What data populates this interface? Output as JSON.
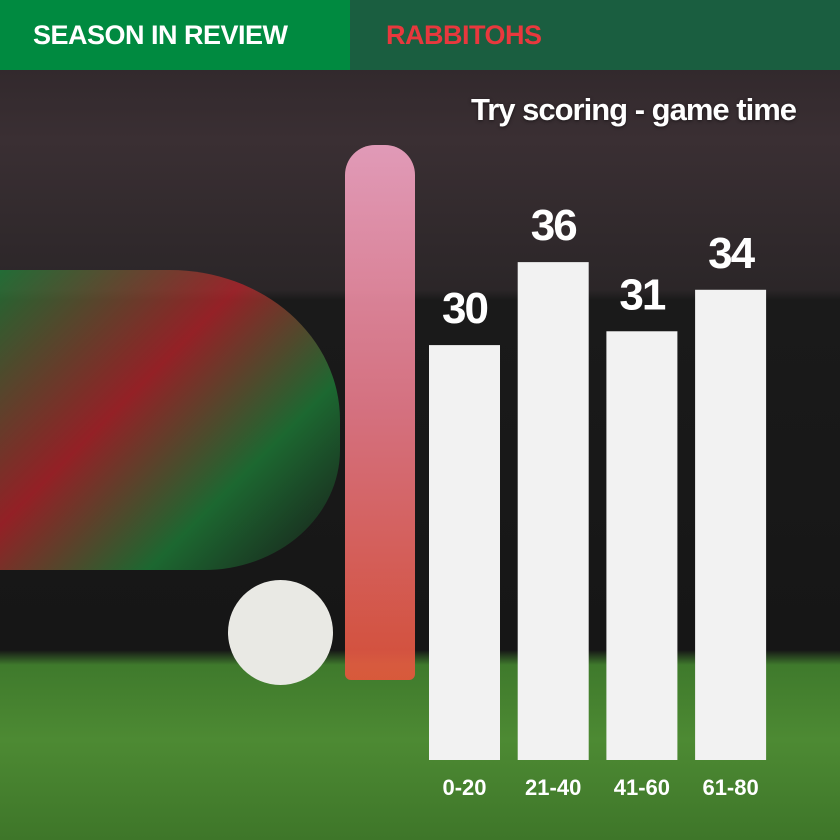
{
  "header": {
    "left": "SEASON IN REVIEW",
    "right": "RABBITOHS"
  },
  "colors": {
    "left_header": "#008a40",
    "right_header": "#1a5e40",
    "team_text": "#e8383d",
    "bars": "#f2f2f2"
  },
  "chart_data": {
    "type": "bar",
    "title": "Try scoring - game time",
    "categories": [
      "0-20",
      "21-40",
      "41-60",
      "61-80"
    ],
    "values": [
      30,
      36,
      31,
      34
    ],
    "xlabel": "",
    "ylabel": "",
    "grid": false,
    "data_labels": true
  }
}
